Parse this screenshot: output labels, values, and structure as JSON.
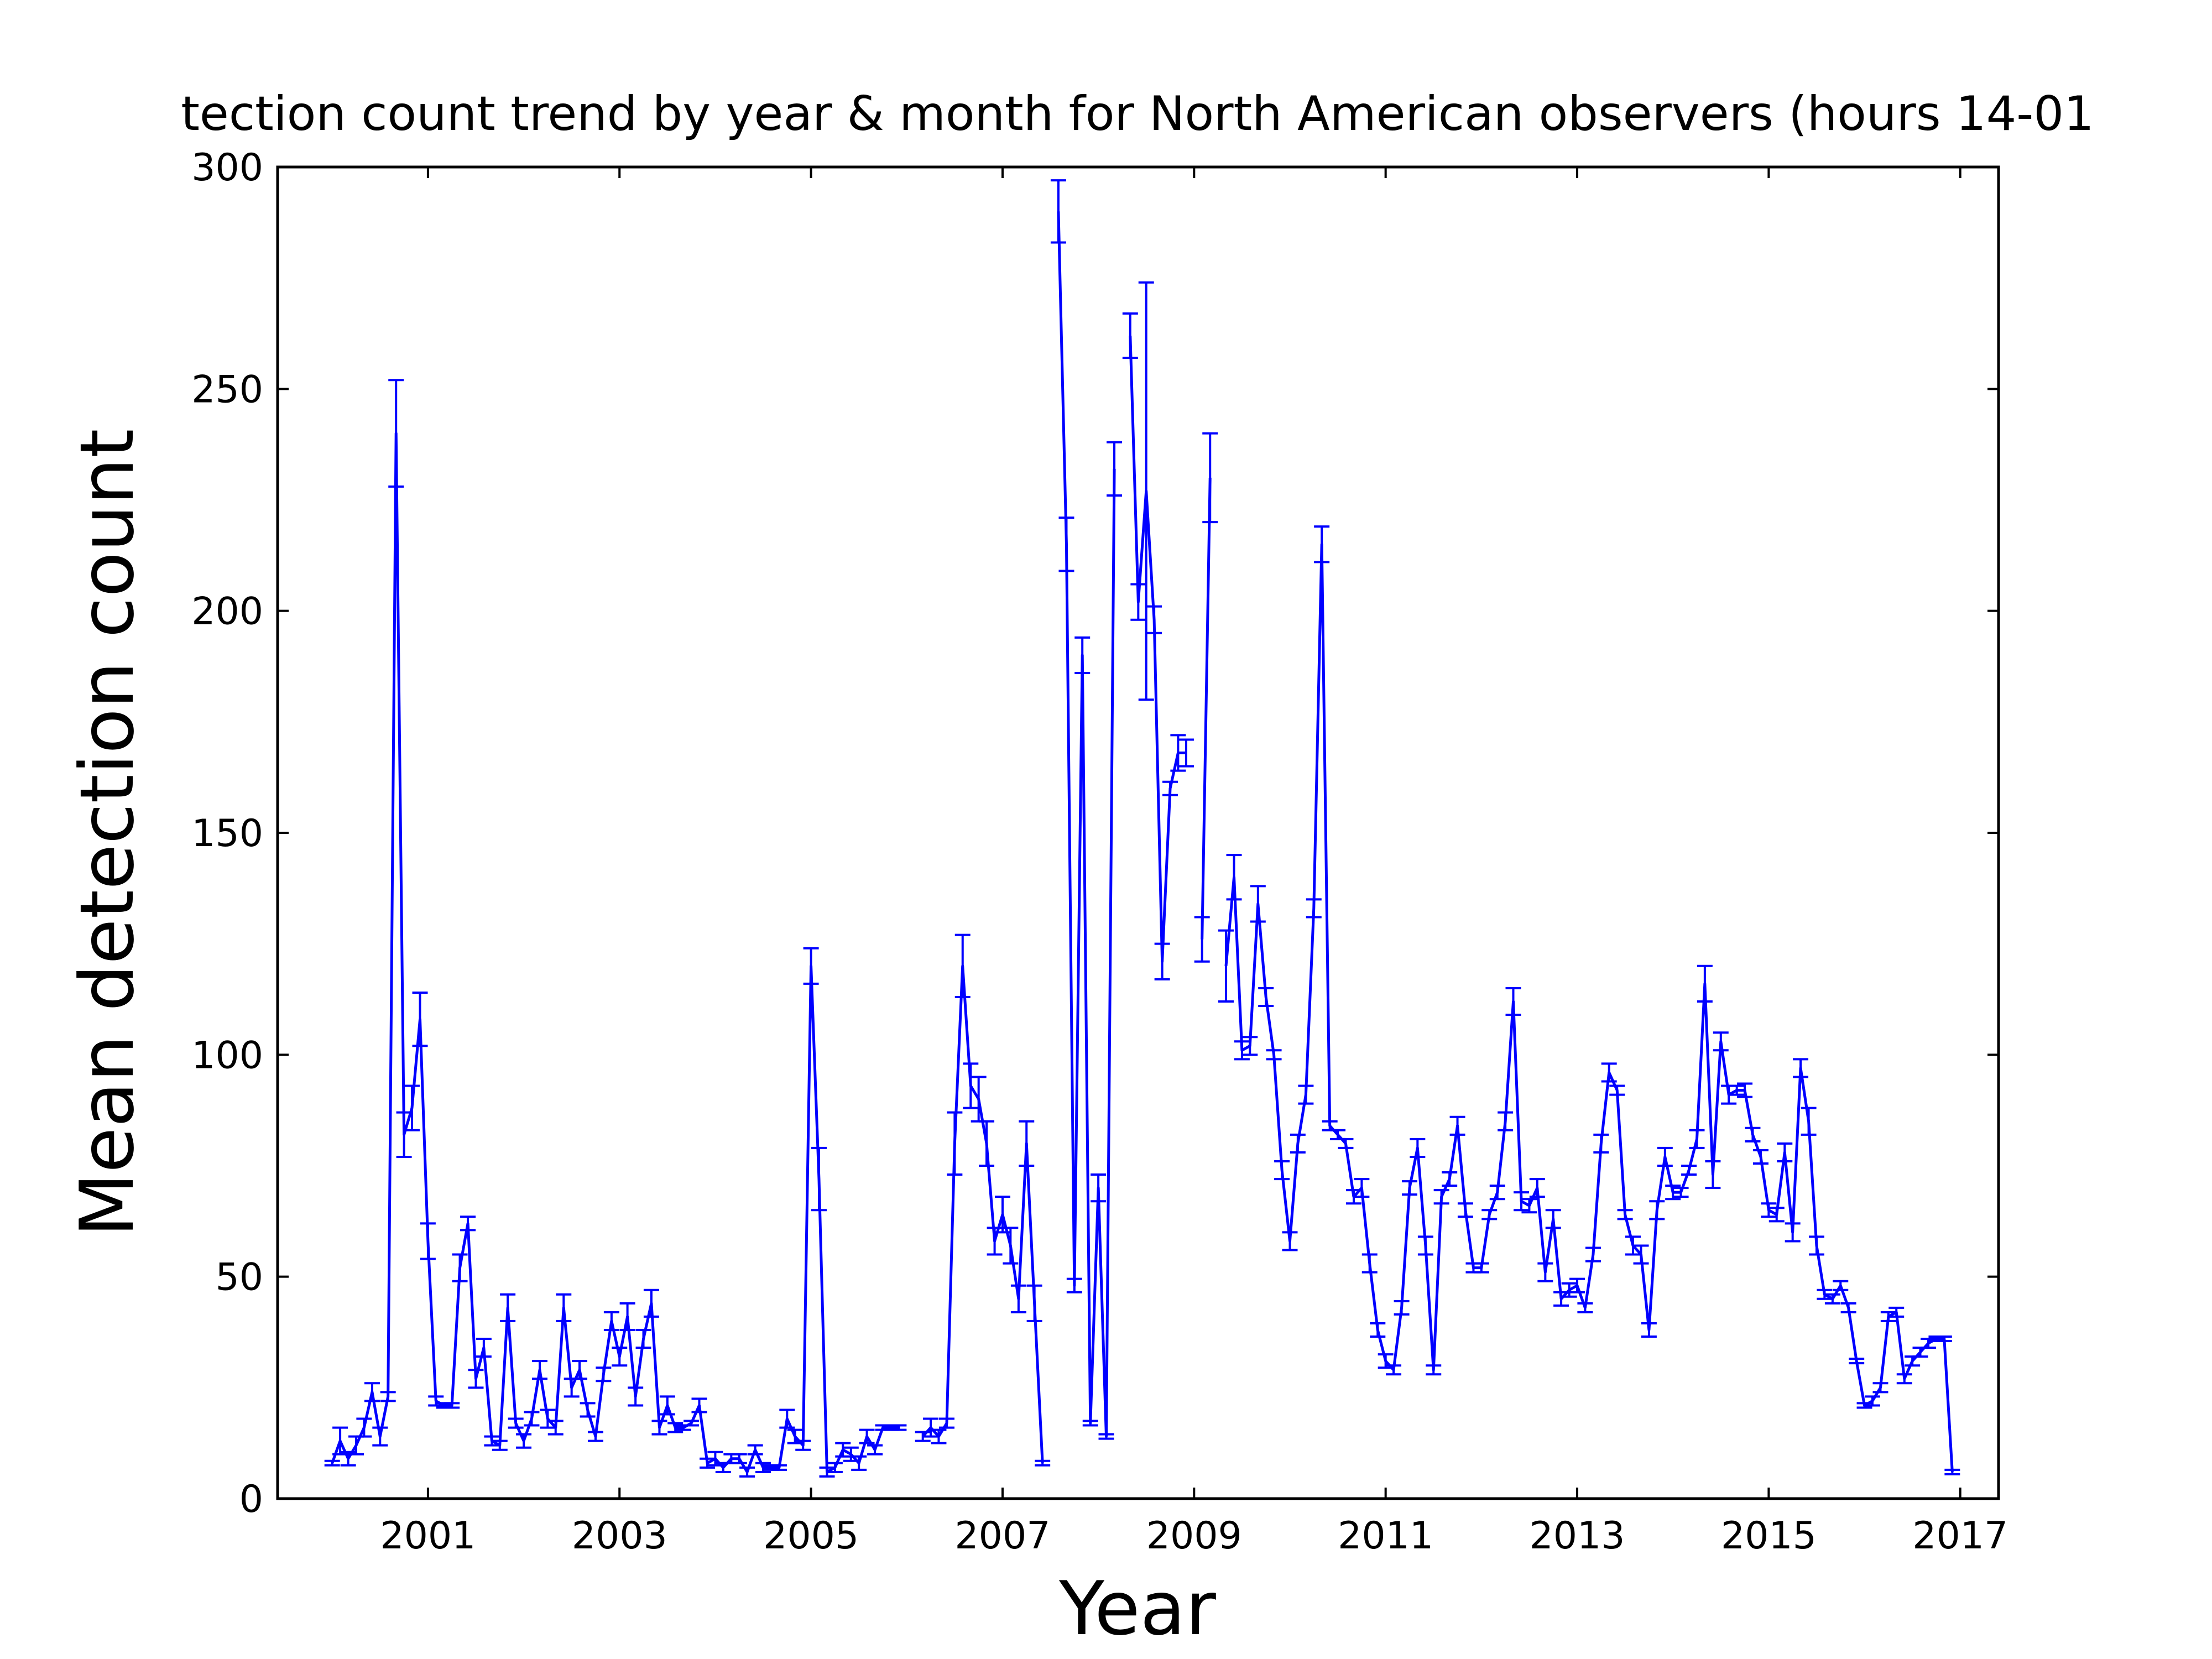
{
  "chart_data": {
    "type": "line",
    "title": "tection count trend by year & month for North American observers (hours 14-01",
    "x_label": "Year",
    "y_label": "Mean detection count",
    "x": [
      2000,
      2000.083,
      2000.167,
      2000.25,
      2000.333,
      2000.417,
      2000.5,
      2000.583,
      2000.667,
      2000.75,
      2000.833,
      2000.917,
      2001,
      2001.083,
      2001.167,
      2001.25,
      2001.333,
      2001.417,
      2001.5,
      2001.583,
      2001.667,
      2001.75,
      2001.833,
      2001.917,
      2002,
      2002.083,
      2002.167,
      2002.25,
      2002.333,
      2002.417,
      2002.5,
      2002.583,
      2002.667,
      2002.75,
      2002.833,
      2002.917,
      2003,
      2003.083,
      2003.167,
      2003.25,
      2003.333,
      2003.417,
      2003.5,
      2003.583,
      2003.667,
      2003.75,
      2003.833,
      2003.917,
      2004,
      2004.083,
      2004.167,
      2004.25,
      2004.333,
      2004.417,
      2004.5,
      2004.583,
      2004.667,
      2004.75,
      2004.833,
      2004.917,
      2005,
      2005.083,
      2005.167,
      2005.25,
      2005.333,
      2005.417,
      2005.5,
      2005.583,
      2005.667,
      2005.75,
      2005.833,
      2005.917,
      2006,
      2006.083,
      2006.167,
      2006.25,
      2006.333,
      2006.417,
      2006.5,
      2006.583,
      2006.667,
      2006.75,
      2006.833,
      2006.917,
      2007,
      2007.083,
      2007.167,
      2007.25,
      2007.333,
      2007.417,
      2007.5,
      2007.583,
      2007.667,
      2007.75,
      2007.833,
      2007.917,
      2008,
      2008.083,
      2008.167,
      2008.25,
      2008.333,
      2008.417,
      2008.5,
      2008.583,
      2008.667,
      2008.75,
      2008.833,
      2008.917,
      2009,
      2009.083,
      2009.167,
      2009.25,
      2009.333,
      2009.417,
      2009.5,
      2009.583,
      2009.667,
      2009.75,
      2009.833,
      2009.917,
      2010,
      2010.083,
      2010.167,
      2010.25,
      2010.333,
      2010.417,
      2010.5,
      2010.583,
      2010.667,
      2010.75,
      2010.833,
      2010.917,
      2011,
      2011.083,
      2011.167,
      2011.25,
      2011.333,
      2011.417,
      2011.5,
      2011.583,
      2011.667,
      2011.75,
      2011.833,
      2011.917,
      2012,
      2012.083,
      2012.167,
      2012.25,
      2012.333,
      2012.417,
      2012.5,
      2012.583,
      2012.667,
      2012.75,
      2012.833,
      2012.917,
      2013,
      2013.083,
      2013.167,
      2013.25,
      2013.333,
      2013.417,
      2013.5,
      2013.583,
      2013.667,
      2013.75,
      2013.833,
      2013.917,
      2014,
      2014.083,
      2014.167,
      2014.25,
      2014.333,
      2014.417,
      2014.5,
      2014.583,
      2014.667,
      2014.75,
      2014.833,
      2014.917,
      2015,
      2015.083,
      2015.167,
      2015.25,
      2015.333,
      2015.417,
      2015.5,
      2015.583,
      2015.667,
      2015.75,
      2015.833,
      2015.917,
      2016,
      2016.083,
      2016.167,
      2016.25,
      2016.333,
      2016.417,
      2016.5,
      2016.583,
      2016.667,
      2016.75,
      2016.833,
      2016.917
    ],
    "series": [
      {
        "color": "#0000ff",
        "values": [
          8,
          13,
          9,
          12,
          16,
          24,
          14,
          23,
          240,
          82,
          88,
          108,
          58,
          22,
          21,
          21,
          52,
          62,
          27,
          34,
          13,
          12,
          43,
          17,
          13,
          18,
          29,
          18,
          16,
          43,
          25,
          29,
          20,
          14,
          28,
          40,
          32,
          41,
          23,
          36,
          44,
          16,
          21,
          16,
          16,
          17,
          21,
          8,
          9,
          7,
          9,
          9,
          6,
          11,
          7,
          7,
          7,
          18,
          14,
          12,
          120,
          72,
          6,
          7,
          11,
          10,
          8,
          14,
          11,
          16,
          16,
          16,
          null,
          null,
          14,
          16,
          14,
          17,
          80,
          120,
          93,
          90,
          80,
          58,
          64,
          57,
          45,
          80,
          44,
          8,
          null,
          290,
          215,
          48,
          190,
          17,
          70,
          14,
          232,
          null,
          262,
          202,
          227,
          198,
          121,
          160,
          168,
          168,
          null,
          126,
          230,
          null,
          120,
          140,
          101,
          102,
          134,
          113,
          100,
          74,
          58,
          80,
          91,
          133,
          215,
          84,
          82,
          80,
          68,
          70,
          53,
          38,
          31,
          29,
          43,
          70,
          79,
          57,
          29,
          68,
          72,
          84,
          65,
          52,
          52,
          64,
          69,
          85,
          112,
          67,
          66,
          70,
          51,
          63,
          45,
          47,
          48,
          43,
          55,
          80,
          96,
          92,
          64,
          57,
          55,
          38,
          65,
          77,
          69,
          69,
          74,
          81,
          116,
          73,
          103,
          91,
          92,
          92,
          82,
          77,
          65,
          64,
          78,
          60,
          97,
          85,
          57,
          46,
          45,
          48,
          43,
          31,
          21,
          22,
          25,
          41,
          42,
          27,
          31,
          33,
          35,
          36,
          36,
          6
        ],
        "errors": [
          0.5,
          3,
          1.5,
          2,
          2,
          2,
          2,
          1,
          12,
          5,
          5,
          6,
          4,
          1,
          0.5,
          0.5,
          3,
          1.5,
          2,
          2,
          1,
          1,
          3,
          1,
          1.5,
          1.5,
          2,
          2,
          1.5,
          3,
          2,
          2,
          1.5,
          1,
          1.5,
          2,
          2,
          3,
          2,
          2,
          3,
          1.5,
          2,
          1,
          0.5,
          0.5,
          1.5,
          1,
          1.5,
          1,
          1,
          1,
          1,
          1,
          1,
          0.5,
          0.5,
          2,
          1.5,
          1,
          4,
          7,
          1,
          1,
          1.5,
          1.5,
          1.5,
          1.5,
          1,
          0.5,
          0.5,
          0.5,
          null,
          null,
          1,
          2,
          1.5,
          1,
          7,
          7,
          5,
          5,
          5,
          3,
          4,
          4,
          3,
          5,
          4,
          0.5,
          null,
          7,
          6,
          1.5,
          4,
          0.5,
          3,
          0.5,
          6,
          null,
          5,
          4,
          47,
          3,
          4,
          1.5,
          4,
          3,
          null,
          5,
          10,
          null,
          8,
          5,
          2,
          2,
          4,
          2,
          1,
          2,
          2,
          2,
          2,
          2,
          4,
          1,
          1,
          1,
          1.5,
          2,
          2,
          1.5,
          1.5,
          1,
          1.5,
          1.5,
          2,
          2,
          1,
          1.5,
          1.5,
          2,
          1.5,
          1,
          1,
          1,
          1.5,
          2,
          3,
          2,
          1.5,
          2,
          2,
          2,
          1.5,
          1.5,
          1.5,
          1,
          1.5,
          2,
          2,
          1,
          1,
          2,
          2,
          1.5,
          2,
          2,
          1.5,
          1,
          1,
          2,
          4,
          3,
          2,
          2,
          1,
          1.5,
          1.5,
          1.5,
          1.5,
          1.5,
          2,
          2,
          2,
          3,
          2,
          1,
          1,
          1,
          1,
          0.5,
          0.5,
          1,
          1,
          1,
          1,
          1,
          1,
          1,
          1,
          0.5,
          0.5,
          0.5
        ]
      }
    ],
    "xlim": [
      1999.43,
      2017.4
    ],
    "xticks": [
      2001,
      2003,
      2005,
      2007,
      2009,
      2011,
      2013,
      2015,
      2017
    ],
    "ylim": [
      0,
      300
    ],
    "yticks": [
      0,
      50,
      100,
      150,
      200,
      250,
      300
    ]
  }
}
